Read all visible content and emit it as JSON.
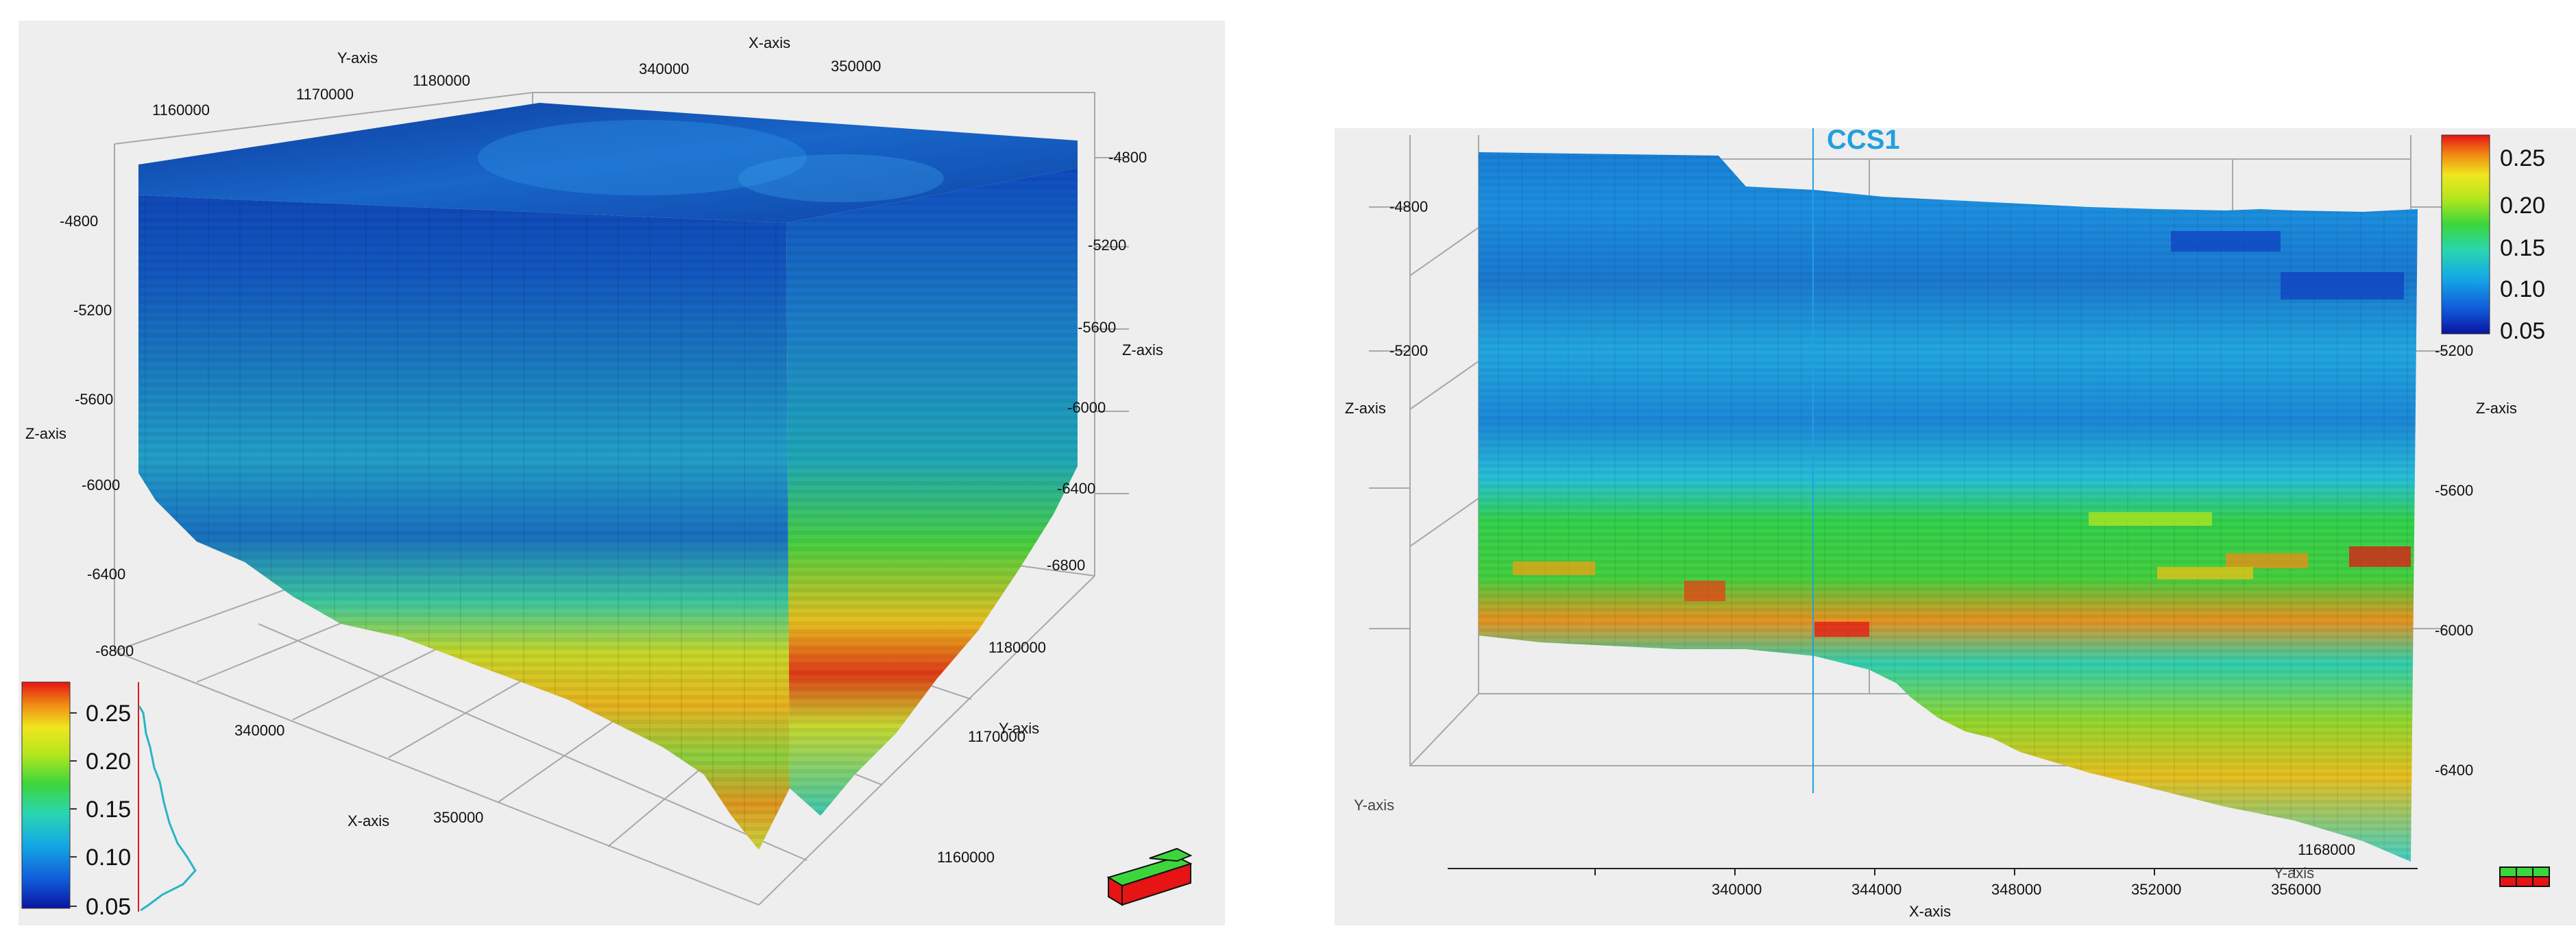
{
  "left_view": {
    "axes": {
      "x_title": "X-axis",
      "y_title": "Y-axis",
      "z_title": "Z-axis",
      "x_ticks_top": [
        "340000",
        "350000"
      ],
      "x_ticks_bottom": [
        "340000",
        "350000"
      ],
      "y_ticks_top": [
        "1160000",
        "1170000",
        "1180000"
      ],
      "y_ticks_right": [
        "1180000",
        "1170000",
        "1160000"
      ],
      "z_ticks_left": [
        "-4800",
        "-5200",
        "-5600",
        "-6000",
        "-6400",
        "-6800"
      ],
      "z_ticks_right": [
        "-4800",
        "-5200",
        "-5600",
        "-6000",
        "-6400",
        "-6800"
      ]
    },
    "colorbar": {
      "labels": [
        "0.25",
        "0.20",
        "0.15",
        "0.10",
        "0.05"
      ],
      "min": 0.05,
      "max": 0.28
    },
    "orientation_icon": "3d-orientation-cube-icon"
  },
  "right_view": {
    "well_label": "CCS1",
    "axes": {
      "x_title": "X-axis",
      "y_title_bottom": "Y-axis",
      "y_title_left": "Y-axis",
      "z_title_left": "Z-axis",
      "z_title_right": "Z-axis",
      "x_ticks": [
        "340000",
        "344000",
        "348000",
        "352000",
        "356000"
      ],
      "y_tick": "1168000",
      "z_ticks_left": [
        "-4800",
        "-5200"
      ],
      "z_ticks_right": [
        "-5200",
        "-5600",
        "-6000",
        "-6400"
      ]
    },
    "colorbar": {
      "labels": [
        "0.25",
        "0.20",
        "0.15",
        "0.10",
        "0.05"
      ],
      "min": 0.05,
      "max": 0.28
    },
    "orientation_icon": "3d-orientation-cube-icon"
  },
  "colors": {
    "panel_bg": "#eeeeee",
    "grid": "#aaaaaa",
    "well_line": "#20a0e0",
    "ramp": [
      "#0a14a0",
      "#1058d8",
      "#14a8e6",
      "#2ad6b0",
      "#3cd63c",
      "#b4e61e",
      "#f0e61e",
      "#f08c14",
      "#e61414"
    ]
  }
}
